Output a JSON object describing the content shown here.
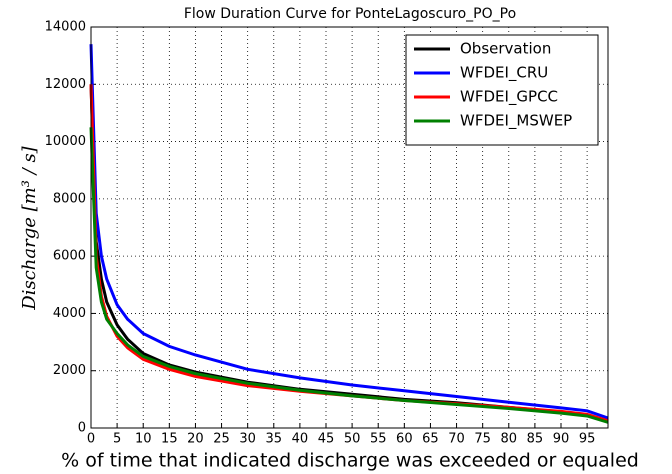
{
  "chart_data": {
    "type": "line",
    "title": "Flow Duration Curve for PonteLagoscuro_PO_Po",
    "x_label": "% of time that indicated discharge was exceeded or equaled",
    "y_label": "Discharge [m³ / s]",
    "x": [
      0,
      1,
      2,
      3,
      5,
      7,
      10,
      15,
      20,
      30,
      40,
      50,
      60,
      70,
      80,
      90,
      95,
      99
    ],
    "series": [
      {
        "name": "Observation",
        "color": "#000000",
        "values": [
          12000,
          6500,
          5200,
          4400,
          3600,
          3100,
          2600,
          2200,
          1950,
          1600,
          1350,
          1180,
          1000,
          880,
          720,
          560,
          450,
          250
        ]
      },
      {
        "name": "WFDEI_CRU",
        "color": "#0000ff",
        "values": [
          13400,
          7500,
          6000,
          5200,
          4300,
          3800,
          3300,
          2850,
          2550,
          2050,
          1750,
          1500,
          1300,
          1100,
          900,
          700,
          600,
          350
        ]
      },
      {
        "name": "WFDEI_GPCC",
        "color": "#ff0000",
        "values": [
          12000,
          6000,
          4600,
          3900,
          3200,
          2800,
          2400,
          2050,
          1800,
          1480,
          1280,
          1120,
          960,
          850,
          720,
          580,
          480,
          250
        ]
      },
      {
        "name": "WFDEI_MSWEP",
        "color": "#008000",
        "values": [
          10500,
          5600,
          4400,
          3800,
          3300,
          2900,
          2500,
          2150,
          1900,
          1560,
          1320,
          1120,
          960,
          820,
          680,
          520,
          420,
          200
        ]
      }
    ],
    "xlim": [
      0,
      99
    ],
    "ylim": [
      0,
      14000
    ],
    "xticks": [
      0,
      5,
      10,
      15,
      20,
      25,
      30,
      35,
      40,
      45,
      50,
      55,
      60,
      65,
      70,
      75,
      80,
      85,
      90,
      95
    ],
    "yticks": [
      0,
      2000,
      4000,
      6000,
      8000,
      10000,
      12000,
      14000
    ],
    "grid": true,
    "legend": "upper right"
  }
}
